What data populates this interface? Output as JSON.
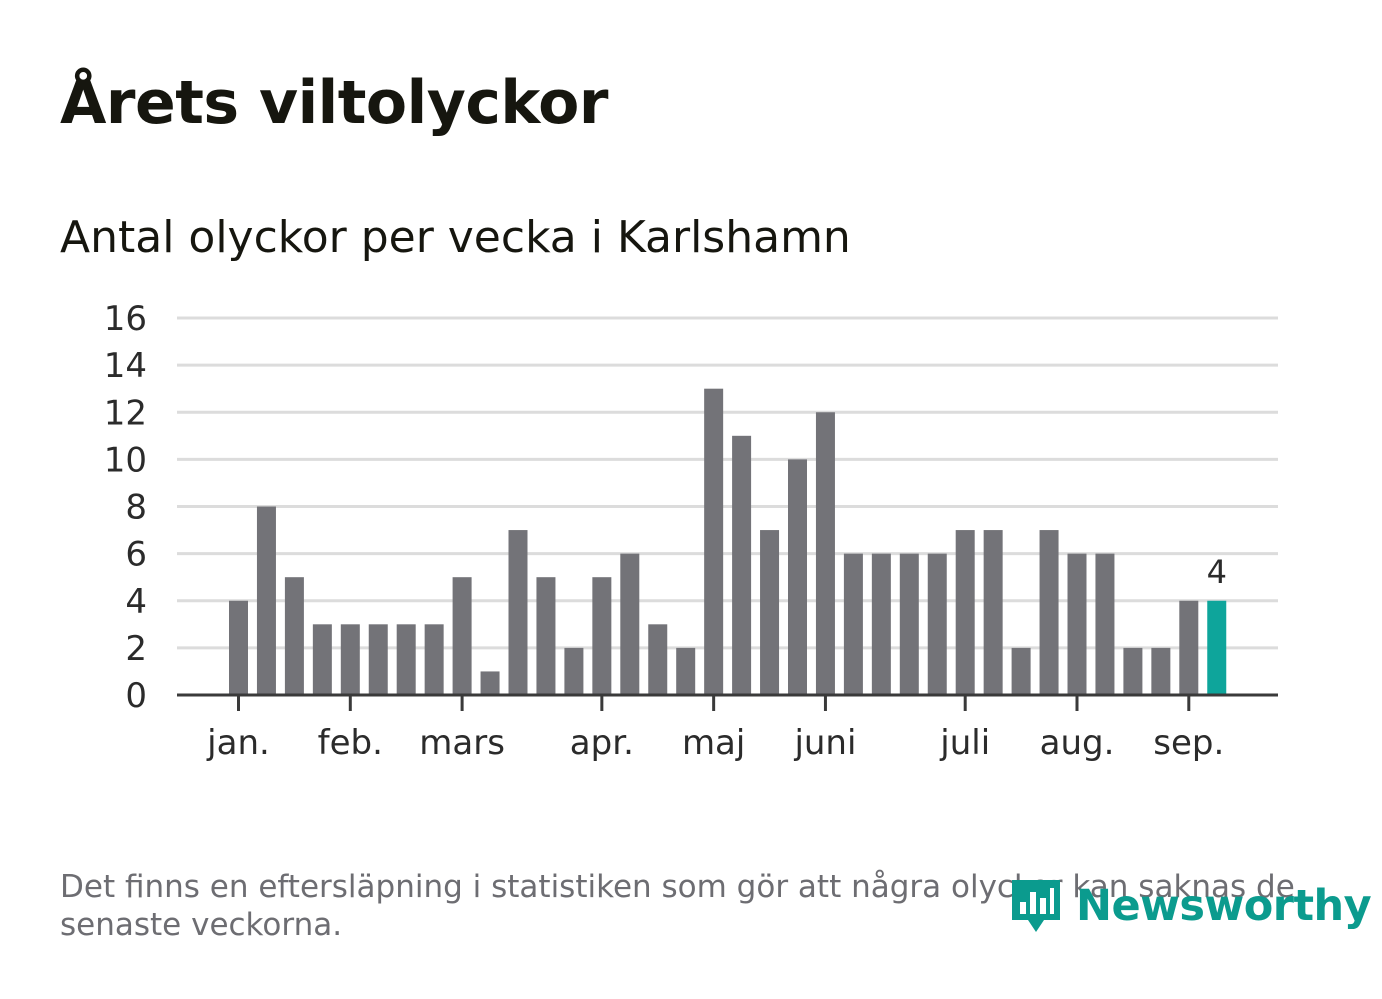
{
  "title": "Årets viltolyckor",
  "subtitle": "Antal olyckor per vecka i Karlshamn",
  "footnote": "Det finns en eftersläpning i statistiken som gör att några olyckor kan saknas de senaste veckorna.",
  "brand": {
    "name": "Newsworthy",
    "icon": "newsworthy-logo-icon",
    "color": "#0b9b8e"
  },
  "chart_data": {
    "type": "bar",
    "title": "Antal olyckor per vecka i Karlshamn",
    "ylim": [
      0,
      16
    ],
    "yticks": [
      0,
      2,
      4,
      6,
      8,
      10,
      12,
      14,
      16
    ],
    "grid": true,
    "x_month_labels": [
      {
        "label": "jan.",
        "at_week": 1
      },
      {
        "label": "feb.",
        "at_week": 5
      },
      {
        "label": "mars",
        "at_week": 9
      },
      {
        "label": "apr.",
        "at_week": 14
      },
      {
        "label": "maj",
        "at_week": 18
      },
      {
        "label": "juni",
        "at_week": 22
      },
      {
        "label": "juli",
        "at_week": 27
      },
      {
        "label": "aug.",
        "at_week": 31
      },
      {
        "label": "sep.",
        "at_week": 35
      }
    ],
    "weeks": [
      1,
      2,
      3,
      4,
      5,
      6,
      7,
      8,
      9,
      10,
      11,
      12,
      13,
      14,
      15,
      16,
      17,
      18,
      19,
      20,
      21,
      22,
      23,
      24,
      25,
      26,
      27,
      28,
      29,
      30,
      31,
      32,
      33,
      34,
      35,
      36
    ],
    "values": [
      4,
      8,
      5,
      3,
      3,
      3,
      3,
      3,
      5,
      1,
      7,
      5,
      2,
      5,
      6,
      3,
      2,
      13,
      11,
      7,
      10,
      12,
      6,
      6,
      6,
      6,
      7,
      7,
      2,
      7,
      6,
      6,
      2,
      2,
      4,
      4
    ],
    "bar_color": "#737378",
    "highlight_color": "#0ea59b",
    "highlight_index": 35,
    "highlight_label": "4"
  }
}
